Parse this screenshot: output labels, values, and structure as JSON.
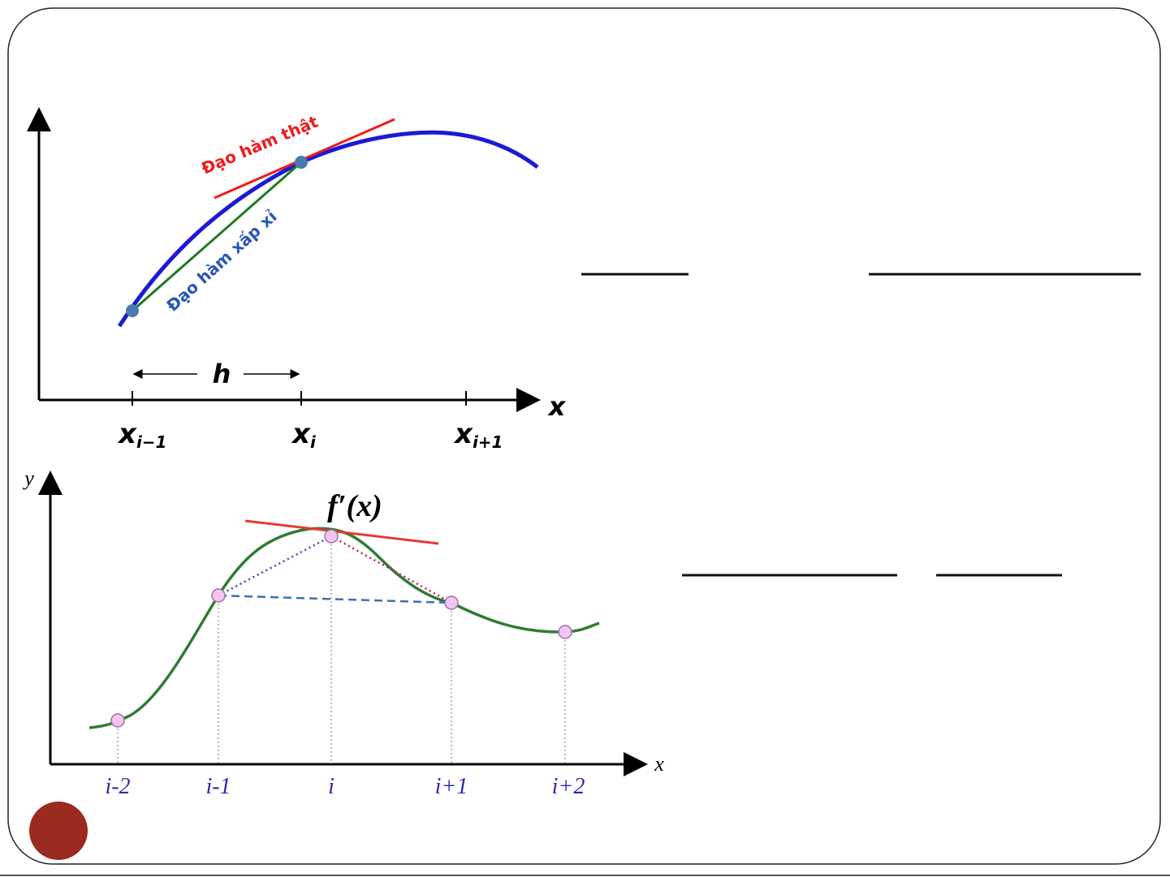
{
  "slide": {
    "frame_color": "#222222",
    "badge_color": "#9b2a20",
    "rule_color": "#111111"
  },
  "diagram_top": {
    "x_axis_label": "x",
    "h_label": "h",
    "true_derivative_label": "Đạo hàm thật",
    "approx_derivative_label": "Đạo hàm xấp xỉ",
    "ticks": [
      {
        "base": "x",
        "sub": "i−1"
      },
      {
        "base": "x",
        "sub": "i"
      },
      {
        "base": "x",
        "sub": "i+1"
      }
    ],
    "colors": {
      "curve": "#1a1ad6",
      "tangent": "#ee1c1c",
      "secant": "#1f7a1f",
      "points": "#4a7ab0",
      "true_label": "#ee1c1c",
      "approx_label": "#2a56b8"
    }
  },
  "diagram_bottom": {
    "y_axis_label": "y",
    "x_axis_label": "x",
    "derivative_label": "f′(x)",
    "ticks": [
      "i-2",
      "i-1",
      "i",
      "i+1",
      "i+2"
    ],
    "colors": {
      "curve": "#2e7d32",
      "tangent": "#e53935",
      "forward": "#c2185b",
      "backward": "#3949ab",
      "central": "#3f6fb5",
      "tick_text": "#2a2ab0",
      "point_fill": "#f2c6f2",
      "point_stroke": "#a070a0"
    }
  }
}
